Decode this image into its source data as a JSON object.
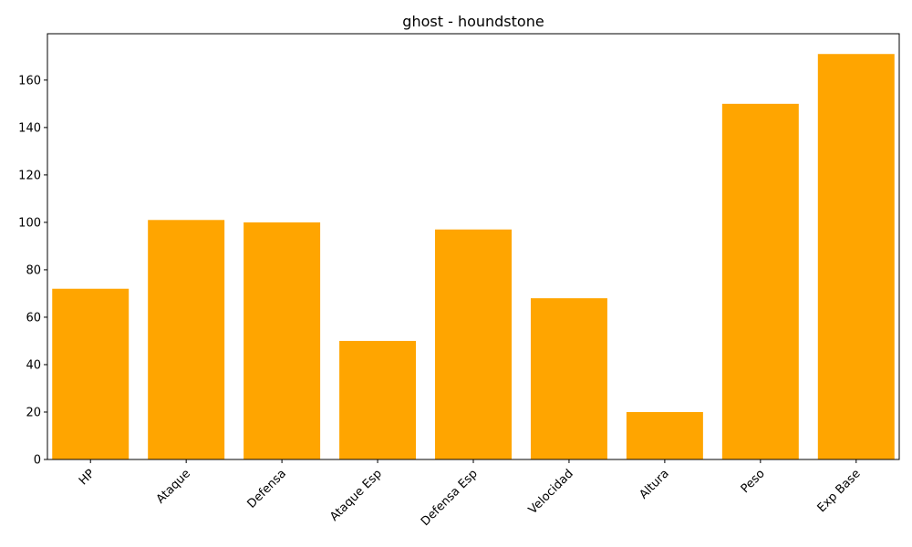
{
  "chart_data": {
    "type": "bar",
    "title": "ghost - houndstone",
    "xlabel": "",
    "ylabel": "",
    "categories": [
      "HP",
      "Ataque",
      "Defensa",
      "Ataque Esp",
      "Defensa Esp",
      "Velocidad",
      "Altura",
      "Peso",
      "Exp Base"
    ],
    "values": [
      72,
      101,
      100,
      50,
      97,
      68,
      20,
      150,
      171
    ],
    "ylim": [
      0,
      179.55
    ],
    "yticks": [
      0,
      20,
      40,
      60,
      80,
      100,
      120,
      140,
      160
    ],
    "bar_color": "#FFA500",
    "grid": false,
    "x_tick_rotation": 45
  }
}
